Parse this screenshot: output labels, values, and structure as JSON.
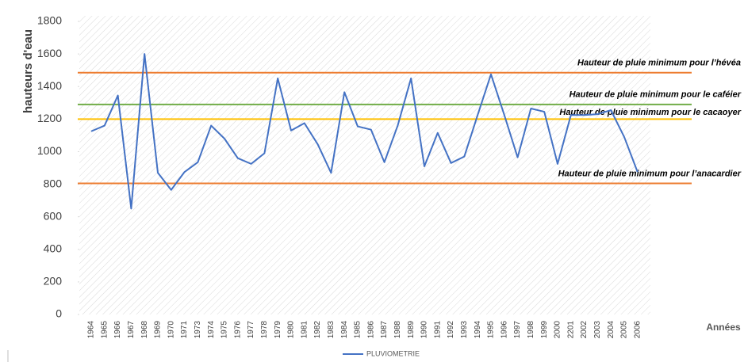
{
  "chart_data": {
    "type": "line",
    "y_label": "hauteurs d'eau",
    "x_label": "Années",
    "categories": [
      "1964",
      "1965",
      "1966",
      "1967",
      "1968",
      "1969",
      "1970",
      "1971",
      "1973",
      "1974",
      "1975",
      "1976",
      "1977",
      "1978",
      "1979",
      "1980",
      "1981",
      "1982",
      "1983",
      "1984",
      "1985",
      "1986",
      "1987",
      "1988",
      "1989",
      "1990",
      "1991",
      "1992",
      "1993",
      "1994",
      "1995",
      "1996",
      "1997",
      "1998",
      "1999",
      "2000",
      "2201",
      "2002",
      "2003",
      "2004",
      "2005",
      "2006"
    ],
    "series": [
      {
        "name": "PLUVIOMETRIE",
        "color": "#4472c4",
        "values": [
          1125,
          1160,
          1345,
          650,
          1600,
          870,
          765,
          875,
          935,
          1160,
          1080,
          960,
          925,
          990,
          1450,
          1130,
          1175,
          1045,
          870,
          1365,
          1155,
          1135,
          935,
          1160,
          1450,
          910,
          1115,
          930,
          970,
          1225,
          1475,
          1225,
          965,
          1265,
          1245,
          925,
          1225,
          1225,
          1230,
          1255,
          1090,
          875
        ]
      }
    ],
    "reference_lines": [
      {
        "label": "Hauteur de pluie minimum pour l’hévéa",
        "value": 1485,
        "color": "#ed7d31"
      },
      {
        "label": "Hauteur de pluie minimum pour le caféier",
        "value": 1290,
        "color": "#70ad47"
      },
      {
        "label": "Hauteur de pluie minimum pour le cacaoyer",
        "value": 1200,
        "color": "#ffc000"
      },
      {
        "label": "Hauteur de pluie minimum pour l’anacardier",
        "value": 805,
        "color": "#ed7d31"
      }
    ],
    "ylim": [
      0,
      1800
    ],
    "yticks": [
      0,
      200,
      400,
      600,
      800,
      1000,
      1200,
      1400,
      1600,
      1800
    ],
    "grid": false,
    "legend": "bottom"
  }
}
